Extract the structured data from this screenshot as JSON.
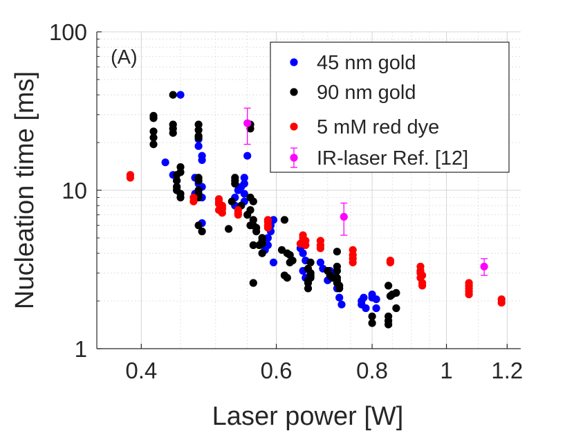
{
  "chart_data": {
    "type": "scatter",
    "xscale": "log",
    "yscale": "log",
    "xlim": [
      0.35,
      1.25
    ],
    "ylim": [
      1,
      100
    ],
    "xlabel": "Laser power [W]",
    "ylabel": "Nucleation time [ms]",
    "panel_label": "(A)",
    "grid": true,
    "legend_position": "top-right",
    "x_ticks": [
      {
        "value": 0.4,
        "label": "0.4"
      },
      {
        "value": 0.6,
        "label": "0.6"
      },
      {
        "value": 0.8,
        "label": "0.8"
      },
      {
        "value": 1.0,
        "label": "1"
      },
      {
        "value": 1.2,
        "label": "1.2"
      }
    ],
    "y_ticks": [
      {
        "value": 1,
        "label": "1"
      },
      {
        "value": 10,
        "label": "10"
      },
      {
        "value": 100,
        "label": "100"
      }
    ],
    "series": [
      {
        "name": "45 nm gold",
        "color": "#0000ff",
        "points": [
          [
            0.45,
            40
          ],
          [
            0.43,
            15
          ],
          [
            0.44,
            12.5
          ],
          [
            0.445,
            11.5
          ],
          [
            0.445,
            10.5
          ],
          [
            0.475,
            21
          ],
          [
            0.475,
            19
          ],
          [
            0.48,
            16.5
          ],
          [
            0.48,
            15.5
          ],
          [
            0.47,
            12
          ],
          [
            0.475,
            11
          ],
          [
            0.48,
            10.5
          ],
          [
            0.47,
            9.5
          ],
          [
            0.48,
            9
          ],
          [
            0.48,
            6.2
          ],
          [
            0.55,
            16.5
          ],
          [
            0.545,
            12
          ],
          [
            0.545,
            11
          ],
          [
            0.54,
            10.5
          ],
          [
            0.535,
            10
          ],
          [
            0.545,
            9.5
          ],
          [
            0.53,
            9
          ],
          [
            0.545,
            8.5
          ],
          [
            0.53,
            8
          ],
          [
            0.595,
            6.5
          ],
          [
            0.59,
            6
          ],
          [
            0.59,
            5.5
          ],
          [
            0.585,
            5
          ],
          [
            0.585,
            4.5
          ],
          [
            0.58,
            4.2
          ],
          [
            0.595,
            3.5
          ],
          [
            0.65,
            4.8
          ],
          [
            0.645,
            4.3
          ],
          [
            0.65,
            4
          ],
          [
            0.655,
            3.6
          ],
          [
            0.65,
            3.1
          ],
          [
            0.655,
            2.8
          ],
          [
            0.685,
            3.5
          ],
          [
            0.69,
            3.2
          ],
          [
            0.705,
            3.1
          ],
          [
            0.71,
            2.9
          ],
          [
            0.7,
            2.7
          ],
          [
            0.72,
            2.4
          ],
          [
            0.725,
            2.1
          ],
          [
            0.73,
            1.9
          ],
          [
            0.78,
            2.1
          ],
          [
            0.775,
            2
          ],
          [
            0.775,
            1.9
          ],
          [
            0.785,
            1.8
          ],
          [
            0.8,
            2.2
          ],
          [
            0.8,
            2.1
          ],
          [
            0.81,
            2.05
          ],
          [
            0.81,
            1.8
          ]
        ]
      },
      {
        "name": "90 nm gold",
        "color": "#000000",
        "points": [
          [
            0.44,
            40
          ],
          [
            0.415,
            29.5
          ],
          [
            0.415,
            28.5
          ],
          [
            0.44,
            26
          ],
          [
            0.44,
            24.5
          ],
          [
            0.415,
            23.5
          ],
          [
            0.44,
            23
          ],
          [
            0.415,
            21.5
          ],
          [
            0.415,
            19.5
          ],
          [
            0.475,
            26
          ],
          [
            0.475,
            24
          ],
          [
            0.475,
            22
          ],
          [
            0.475,
            21.5
          ],
          [
            0.45,
            14
          ],
          [
            0.45,
            13
          ],
          [
            0.445,
            12.5
          ],
          [
            0.445,
            11.5
          ],
          [
            0.445,
            10.5
          ],
          [
            0.445,
            10
          ],
          [
            0.45,
            9.5
          ],
          [
            0.45,
            9
          ],
          [
            0.475,
            12
          ],
          [
            0.475,
            11.5
          ],
          [
            0.475,
            10
          ],
          [
            0.475,
            9.5
          ],
          [
            0.475,
            9
          ],
          [
            0.475,
            6
          ],
          [
            0.48,
            5.5
          ],
          [
            0.53,
            12
          ],
          [
            0.53,
            11.5
          ],
          [
            0.53,
            11
          ],
          [
            0.525,
            8.5
          ],
          [
            0.54,
            8
          ],
          [
            0.52,
            5.7
          ],
          [
            0.555,
            26
          ],
          [
            0.555,
            24.5
          ],
          [
            0.555,
            9
          ],
          [
            0.56,
            8.5
          ],
          [
            0.555,
            7.5
          ],
          [
            0.55,
            7
          ],
          [
            0.56,
            6.5
          ],
          [
            0.555,
            6
          ],
          [
            0.56,
            6
          ],
          [
            0.565,
            5.8
          ],
          [
            0.565,
            5.5
          ],
          [
            0.56,
            4.5
          ],
          [
            0.57,
            4.5
          ],
          [
            0.575,
            4
          ],
          [
            0.575,
            5
          ],
          [
            0.575,
            4.8
          ],
          [
            0.575,
            4.6
          ],
          [
            0.56,
            2.6
          ],
          [
            0.615,
            6.5
          ],
          [
            0.61,
            4.2
          ],
          [
            0.62,
            4
          ],
          [
            0.625,
            3.9
          ],
          [
            0.625,
            3.5
          ],
          [
            0.63,
            3.6
          ],
          [
            0.615,
            2.9
          ],
          [
            0.62,
            2.8
          ],
          [
            0.665,
            3.5
          ],
          [
            0.66,
            3.2
          ],
          [
            0.665,
            3
          ],
          [
            0.665,
            2.9
          ],
          [
            0.665,
            2.8
          ],
          [
            0.66,
            2.7
          ],
          [
            0.66,
            2.6
          ],
          [
            0.66,
            2.4
          ],
          [
            0.7,
            3.1
          ],
          [
            0.71,
            2.8
          ],
          [
            0.705,
            2.9
          ],
          [
            0.72,
            4.1
          ],
          [
            0.72,
            3.3
          ],
          [
            0.72,
            3.1
          ],
          [
            0.72,
            2.8
          ],
          [
            0.72,
            2.7
          ],
          [
            0.72,
            2.6
          ],
          [
            0.725,
            2.5
          ],
          [
            0.725,
            2.4
          ],
          [
            0.8,
            1.6
          ],
          [
            0.8,
            1.45
          ],
          [
            0.84,
            2.5
          ],
          [
            0.845,
            2.15
          ],
          [
            0.85,
            2.2
          ],
          [
            0.84,
            1.6
          ],
          [
            0.84,
            1.5
          ],
          [
            0.84,
            1.42
          ],
          [
            0.86,
            2.25
          ],
          [
            0.86,
            1.8
          ]
        ]
      },
      {
        "name": "5 mM red dye",
        "color": "#ff0000",
        "points": [
          [
            0.387,
            12.5
          ],
          [
            0.387,
            12
          ],
          [
            0.468,
            9
          ],
          [
            0.468,
            8.5
          ],
          [
            0.505,
            8.8
          ],
          [
            0.505,
            8.5
          ],
          [
            0.505,
            8.2
          ],
          [
            0.51,
            8
          ],
          [
            0.51,
            7.8
          ],
          [
            0.51,
            7.6
          ],
          [
            0.505,
            7.5
          ],
          [
            0.51,
            7.2
          ],
          [
            0.535,
            7.5
          ],
          [
            0.535,
            7.2
          ],
          [
            0.535,
            7
          ],
          [
            0.585,
            6.5
          ],
          [
            0.585,
            6.3
          ],
          [
            0.585,
            6
          ],
          [
            0.585,
            5.8
          ],
          [
            0.65,
            5.2
          ],
          [
            0.65,
            5
          ],
          [
            0.655,
            4.8
          ],
          [
            0.645,
            4.6
          ],
          [
            0.655,
            4.5
          ],
          [
            0.685,
            4.8
          ],
          [
            0.685,
            4.5
          ],
          [
            0.685,
            4.3
          ],
          [
            0.755,
            4.2
          ],
          [
            0.755,
            3.9
          ],
          [
            0.755,
            3.7
          ],
          [
            0.755,
            3.5
          ],
          [
            0.845,
            3.6
          ],
          [
            0.845,
            3.5
          ],
          [
            0.925,
            3.3
          ],
          [
            0.925,
            3.1
          ],
          [
            0.925,
            3
          ],
          [
            0.93,
            2.9
          ],
          [
            0.925,
            2.8
          ],
          [
            0.93,
            2.6
          ],
          [
            0.93,
            2.5
          ],
          [
            1.07,
            2.6
          ],
          [
            1.07,
            2.5
          ],
          [
            1.07,
            2.4
          ],
          [
            1.07,
            2.3
          ],
          [
            1.07,
            2.2
          ],
          [
            1.18,
            2.05
          ],
          [
            1.18,
            1.95
          ]
        ]
      },
      {
        "name": "IR-laser Ref. [12]",
        "color": "#ff00ff",
        "error_bars": true,
        "points": [
          {
            "x": 0.55,
            "y": 26.5,
            "ylow": 19.5,
            "yhigh": 33
          },
          {
            "x": 0.735,
            "y": 6.8,
            "ylow": 5.2,
            "yhigh": 8.3
          },
          {
            "x": 1.12,
            "y": 3.3,
            "ylow": 2.9,
            "yhigh": 3.7
          }
        ]
      }
    ]
  }
}
